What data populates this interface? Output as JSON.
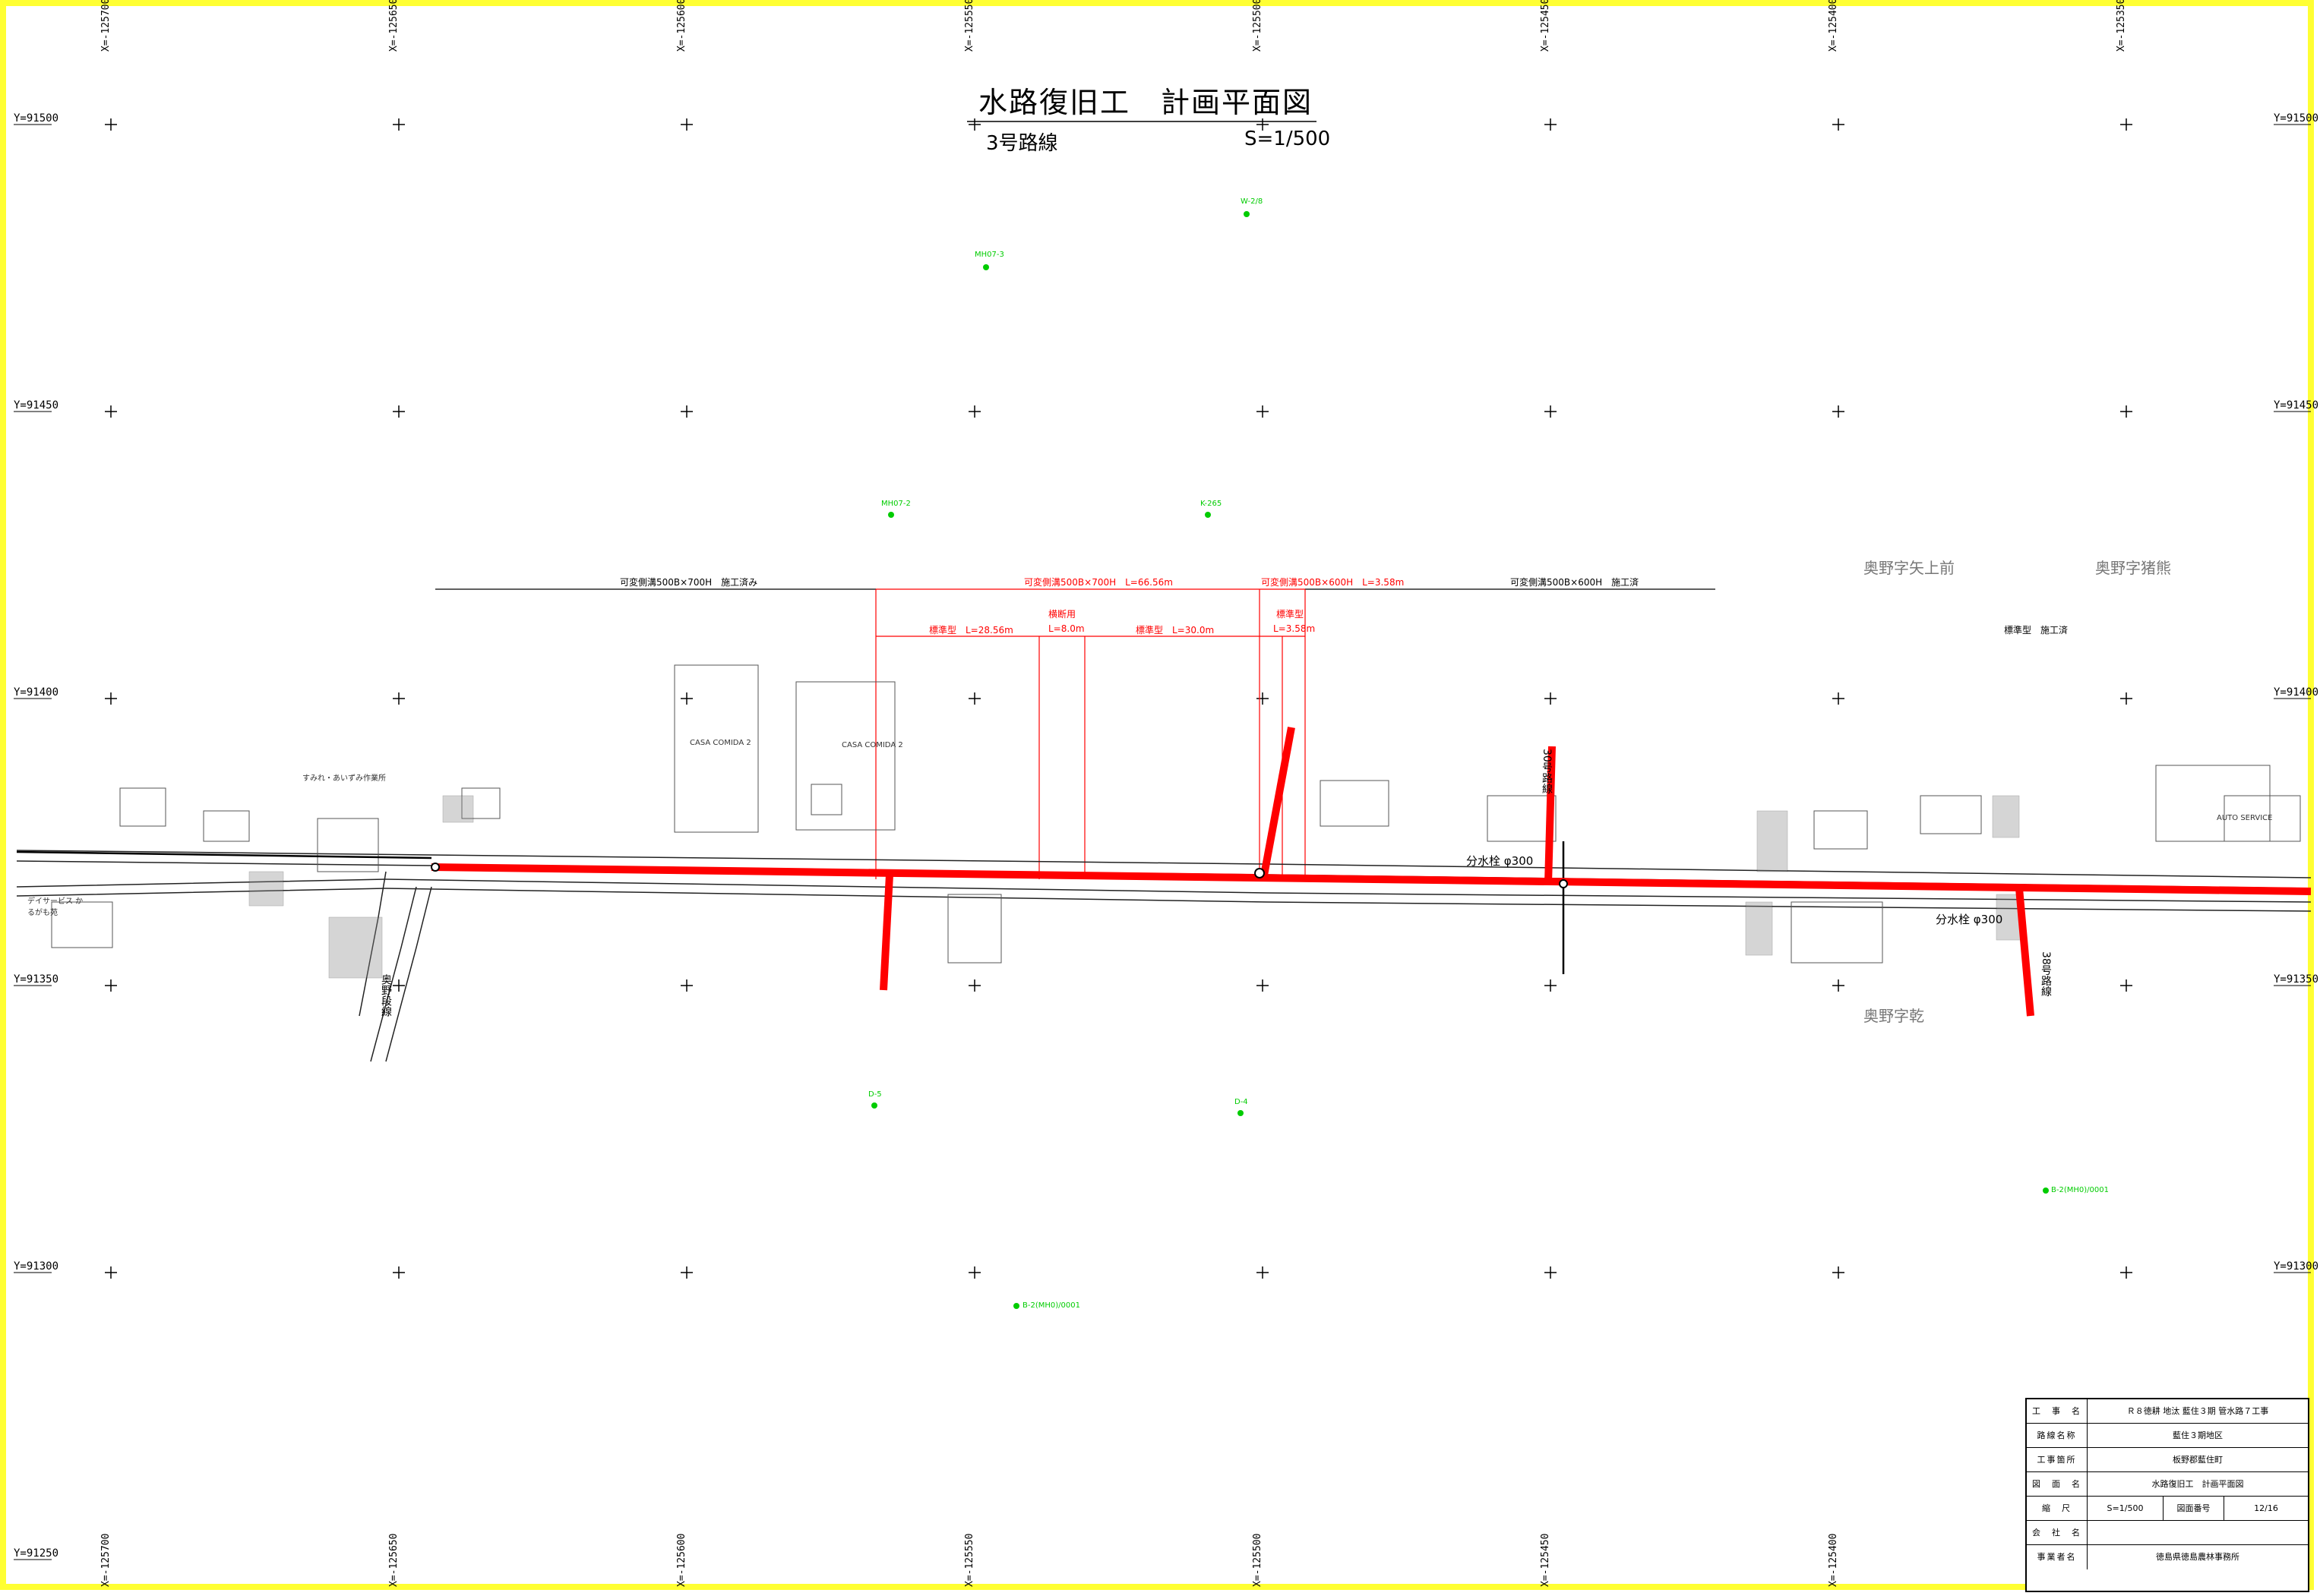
{
  "drawing": {
    "title": "水路復旧工　計画平面図",
    "route": "3号路線",
    "scale": "S=1/500"
  },
  "grid": {
    "y_labels": [
      "Y=91500",
      "Y=91450",
      "Y=91400",
      "Y=91350",
      "Y=91300",
      "Y=91250"
    ],
    "x_labels": [
      "X=-125700",
      "X=-125650",
      "X=-125600",
      "X=-125550",
      "X=-125500",
      "X=-125450",
      "X=-125400",
      "X=-125350"
    ]
  },
  "dimensions": {
    "done_left": "可変側溝500B×700H　施工済み",
    "new_main": "可変側溝500B×700H　L=66.56m",
    "new_short": "可変側溝500B×600H　L=3.58m",
    "done_right": "可変側溝500B×600H　施工済",
    "cross_use": "横断用",
    "std_a": "標準型　L=28.56m",
    "std_b": "L=8.0m",
    "std_c": "標準型　L=30.0m",
    "std_d": "標準型",
    "std_e": "L=3.58m",
    "std_done": "標準型　施工済"
  },
  "places": {
    "yagamimae": "奥野字矢上前",
    "inokuma": "奥野字猪熊",
    "inui": "奥野字乾"
  },
  "routes": {
    "okuno": "奥野段線",
    "no30": "30号路線",
    "right": "38号路線"
  },
  "flow": {
    "bunsui_1": "分水栓 φ300",
    "bunsui_2": "分水栓 φ300",
    "casa_1": "CASA COMIDA 2",
    "casa_2": "CASA COMIDA 2",
    "auto": "AUTO SERVICE",
    "daycare": "デイサービス かるがも苑",
    "sumire": "すみれ・あいずみ作業所"
  },
  "green_points": [
    "W-2/8",
    "MH07-3",
    "MH07-2",
    "K-265",
    "D-5",
    "D-4",
    "B-2(MH0)/0001",
    "B-2(MH0)/0001"
  ],
  "title_block": {
    "rows": [
      {
        "label": "工　事　名",
        "value": "Ｒ８徳耕 地汰 藍住３期 管水路７工事"
      },
      {
        "label": "路線名称",
        "value": "藍住３期地区"
      },
      {
        "label": "工事箇所",
        "value": "板野郡藍住町"
      },
      {
        "label": "図　面　名",
        "value": "水路復旧工　計画平面図"
      }
    ],
    "scale_label": "縮　尺",
    "scale_value": "S=1/500",
    "sheet_label": "図面番号",
    "sheet_value": "12/16",
    "company_label": "会　社　名",
    "company_value": "",
    "owner_label": "事業者名",
    "owner_value": "徳島県徳島農林事務所"
  },
  "colors": {
    "border": "#ffff33",
    "new_channel": "#ff0000",
    "survey_point": "#00cc00",
    "linework": "#000000"
  }
}
